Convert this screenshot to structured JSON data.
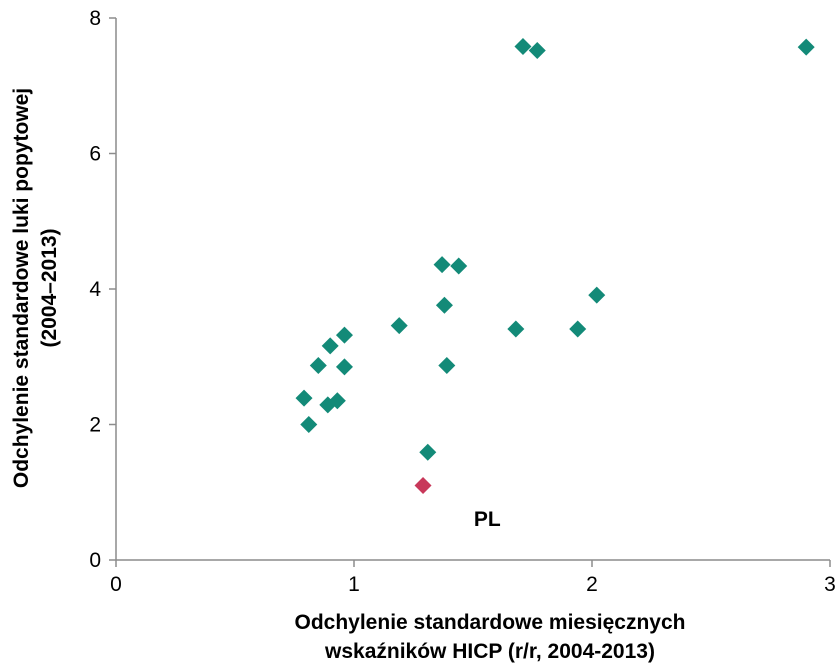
{
  "chart_data": {
    "type": "scatter",
    "title": "",
    "xlabel_lines": [
      "Odchylenie standardowe miesięcznych",
      "wskaźników HICP (r/r, 2004-2013)"
    ],
    "ylabel_lines": [
      "Odchylenie standardowe luki popytowej",
      "(2004–2013)"
    ],
    "xlim": [
      0,
      3
    ],
    "ylim": [
      0,
      8
    ],
    "xticks": [
      0,
      1,
      2,
      3
    ],
    "yticks": [
      0,
      2,
      4,
      6,
      8
    ],
    "grid": false,
    "legend": "none",
    "marker": "diamond",
    "series": [
      {
        "color": "#138a78",
        "points": [
          {
            "x": 0.79,
            "y": 2.39
          },
          {
            "x": 0.81,
            "y": 2.0
          },
          {
            "x": 0.85,
            "y": 2.87
          },
          {
            "x": 0.89,
            "y": 2.29
          },
          {
            "x": 0.9,
            "y": 3.16
          },
          {
            "x": 0.93,
            "y": 2.35
          },
          {
            "x": 0.96,
            "y": 3.32
          },
          {
            "x": 0.96,
            "y": 2.85
          },
          {
            "x": 1.19,
            "y": 3.46
          },
          {
            "x": 1.31,
            "y": 1.59
          },
          {
            "x": 1.37,
            "y": 4.36
          },
          {
            "x": 1.38,
            "y": 3.76
          },
          {
            "x": 1.39,
            "y": 2.87
          },
          {
            "x": 1.44,
            "y": 4.34
          },
          {
            "x": 1.68,
            "y": 3.41
          },
          {
            "x": 1.71,
            "y": 7.58
          },
          {
            "x": 1.77,
            "y": 7.52
          },
          {
            "x": 1.94,
            "y": 3.41
          },
          {
            "x": 2.02,
            "y": 3.91
          },
          {
            "x": 2.9,
            "y": 7.57
          }
        ]
      },
      {
        "color": "#c8385a",
        "points": [
          {
            "x": 1.29,
            "y": 1.1
          }
        ]
      }
    ],
    "annotations": [
      {
        "text": "PL",
        "x": 1.56,
        "y": 0.62
      }
    ]
  }
}
